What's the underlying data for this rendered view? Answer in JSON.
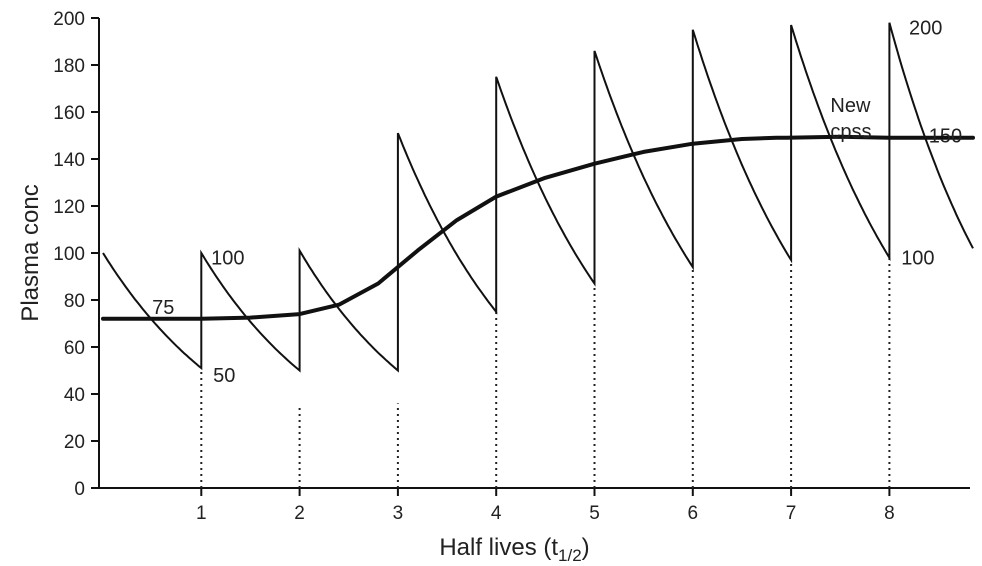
{
  "chart_data": {
    "type": "line",
    "xlabel": "Half lives (t",
    "xlabel_sub": "1/2",
    "xlabel_end": ")",
    "ylabel": "Plasma conc",
    "xlim": [
      0,
      8.85
    ],
    "ylim": [
      0,
      200
    ],
    "x_ticks": [
      1,
      2,
      3,
      4,
      5,
      6,
      7,
      8
    ],
    "y_ticks": [
      0,
      20,
      40,
      60,
      80,
      100,
      120,
      140,
      160,
      180,
      200
    ],
    "grid": false,
    "series": [
      {
        "kind": "sawtooth",
        "segments": [
          {
            "x0": 0,
            "x1": 1,
            "peak": 100,
            "trough": 51
          },
          {
            "x0": 1,
            "x1": 2,
            "peak": 100,
            "trough": 50
          },
          {
            "x0": 2,
            "x1": 3,
            "peak": 101,
            "trough": 50
          },
          {
            "x0": 3,
            "x1": 4,
            "peak": 151,
            "trough": 75
          },
          {
            "x0": 4,
            "x1": 5,
            "peak": 175,
            "trough": 87
          },
          {
            "x0": 5,
            "x1": 6,
            "peak": 186,
            "trough": 94
          },
          {
            "x0": 6,
            "x1": 7,
            "peak": 195,
            "trough": 97
          },
          {
            "x0": 7,
            "x1": 8,
            "peak": 197,
            "trough": 98
          },
          {
            "x0": 8,
            "x1": 8.85,
            "peak": 198,
            "trough": 102
          }
        ]
      },
      {
        "kind": "average",
        "points": [
          [
            0,
            72
          ],
          [
            1,
            72
          ],
          [
            1.5,
            72.5
          ],
          [
            2,
            74
          ],
          [
            2.4,
            78
          ],
          [
            2.8,
            87
          ],
          [
            3.2,
            101
          ],
          [
            3.6,
            114
          ],
          [
            4,
            124
          ],
          [
            4.5,
            132
          ],
          [
            5,
            138
          ],
          [
            5.5,
            143
          ],
          [
            6,
            146.5
          ],
          [
            6.5,
            148.5
          ],
          [
            6.85,
            149
          ],
          [
            6.95,
            149
          ],
          [
            7.5,
            149.5
          ],
          [
            8,
            149
          ],
          [
            8.85,
            149
          ]
        ]
      }
    ],
    "dotted_lines": [
      {
        "x": 1,
        "from": 0,
        "to": 51
      },
      {
        "x": 2,
        "from": 0,
        "to": 35
      },
      {
        "x": 3,
        "from": 0,
        "to": 36
      },
      {
        "x": 4,
        "from": 0,
        "to": 75
      },
      {
        "x": 5,
        "from": 0,
        "to": 87
      },
      {
        "x": 6,
        "from": 0,
        "to": 94
      },
      {
        "x": 7,
        "from": 0,
        "to": 97
      },
      {
        "x": 8,
        "from": 0,
        "to": 98
      }
    ],
    "annotations": [
      {
        "text": "100",
        "x": 1.1,
        "y": 98
      },
      {
        "text": "75",
        "x": 0.5,
        "y": 77
      },
      {
        "text": "50",
        "x": 1.12,
        "y": 48
      },
      {
        "text": "200",
        "x": 8.2,
        "y": 196
      },
      {
        "text": "New",
        "x": 7.4,
        "y": 163
      },
      {
        "text": "cpss",
        "x": 7.4,
        "y": 152
      },
      {
        "text": "150",
        "x": 8.4,
        "y": 150
      },
      {
        "text": "100",
        "x": 8.12,
        "y": 98
      }
    ]
  }
}
